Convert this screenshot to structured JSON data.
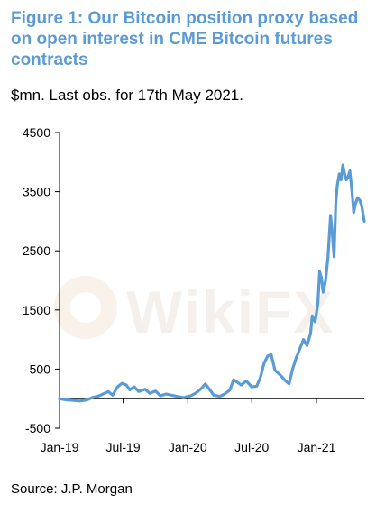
{
  "title": "Figure 1: Our Bitcoin position proxy based on open interest in CME Bitcoin futures contracts",
  "subtitle": "$mn. Last obs. for 17th May 2021.",
  "source": "Source: J.P. Morgan",
  "watermark": "WikiFX",
  "colors": {
    "title": "#5b9bd5",
    "line": "#5b9bd5"
  },
  "chart_data": {
    "type": "line",
    "title": "Figure 1: Our Bitcoin position proxy based on open interest in CME Bitcoin futures contracts",
    "subtitle": "$mn. Last obs. for 17th May 2021.",
    "xlabel": "",
    "ylabel": "",
    "ylim": [
      -500,
      4500
    ],
    "yticks": [
      -500,
      500,
      1500,
      2500,
      3500,
      4500
    ],
    "xlim": [
      "2019-01-01",
      "2021-05-17"
    ],
    "xticks": [
      {
        "date": "2019-01-01",
        "label": "Jan-19"
      },
      {
        "date": "2019-07-01",
        "label": "Jul-19"
      },
      {
        "date": "2020-01-01",
        "label": "Jan-20"
      },
      {
        "date": "2020-07-01",
        "label": "Jul-20"
      },
      {
        "date": "2021-01-01",
        "label": "Jan-21"
      }
    ],
    "grid": false,
    "legend": "none",
    "series": [
      {
        "color": "#5b9bd5",
        "points": [
          [
            "2019-01-01",
            0
          ],
          [
            "2019-01-20",
            -20
          ],
          [
            "2019-02-10",
            -30
          ],
          [
            "2019-03-01",
            -40
          ],
          [
            "2019-03-20",
            -20
          ],
          [
            "2019-04-05",
            20
          ],
          [
            "2019-04-20",
            40
          ],
          [
            "2019-05-05",
            80
          ],
          [
            "2019-05-20",
            120
          ],
          [
            "2019-06-01",
            60
          ],
          [
            "2019-06-15",
            200
          ],
          [
            "2019-06-28",
            260
          ],
          [
            "2019-07-10",
            230
          ],
          [
            "2019-07-20",
            150
          ],
          [
            "2019-08-01",
            200
          ],
          [
            "2019-08-15",
            120
          ],
          [
            "2019-09-01",
            160
          ],
          [
            "2019-09-15",
            90
          ],
          [
            "2019-10-01",
            130
          ],
          [
            "2019-10-15",
            50
          ],
          [
            "2019-11-01",
            80
          ],
          [
            "2019-11-15",
            60
          ],
          [
            "2019-12-01",
            40
          ],
          [
            "2019-12-20",
            20
          ],
          [
            "2020-01-10",
            50
          ],
          [
            "2020-01-25",
            100
          ],
          [
            "2020-02-10",
            180
          ],
          [
            "2020-02-20",
            250
          ],
          [
            "2020-03-01",
            170
          ],
          [
            "2020-03-15",
            60
          ],
          [
            "2020-04-01",
            40
          ],
          [
            "2020-04-15",
            80
          ],
          [
            "2020-04-30",
            150
          ],
          [
            "2020-05-10",
            320
          ],
          [
            "2020-05-20",
            280
          ],
          [
            "2020-06-01",
            230
          ],
          [
            "2020-06-15",
            300
          ],
          [
            "2020-07-01",
            200
          ],
          [
            "2020-07-15",
            210
          ],
          [
            "2020-07-25",
            350
          ],
          [
            "2020-08-05",
            600
          ],
          [
            "2020-08-15",
            720
          ],
          [
            "2020-08-25",
            750
          ],
          [
            "2020-09-05",
            480
          ],
          [
            "2020-09-20",
            400
          ],
          [
            "2020-10-05",
            300
          ],
          [
            "2020-10-15",
            250
          ],
          [
            "2020-10-25",
            500
          ],
          [
            "2020-11-05",
            700
          ],
          [
            "2020-11-15",
            850
          ],
          [
            "2020-11-25",
            1000
          ],
          [
            "2020-12-05",
            900
          ],
          [
            "2020-12-15",
            1100
          ],
          [
            "2020-12-20",
            1400
          ],
          [
            "2020-12-28",
            1300
          ],
          [
            "2021-01-05",
            1600
          ],
          [
            "2021-01-10",
            2150
          ],
          [
            "2021-01-15",
            2050
          ],
          [
            "2021-01-20",
            1800
          ],
          [
            "2021-01-27",
            2000
          ],
          [
            "2021-02-03",
            2400
          ],
          [
            "2021-02-10",
            3100
          ],
          [
            "2021-02-15",
            2800
          ],
          [
            "2021-02-20",
            2400
          ],
          [
            "2021-02-25",
            3300
          ],
          [
            "2021-03-01",
            3600
          ],
          [
            "2021-03-07",
            3800
          ],
          [
            "2021-03-12",
            3700
          ],
          [
            "2021-03-17",
            3950
          ],
          [
            "2021-03-22",
            3800
          ],
          [
            "2021-03-27",
            3700
          ],
          [
            "2021-04-01",
            3750
          ],
          [
            "2021-04-06",
            3850
          ],
          [
            "2021-04-12",
            3500
          ],
          [
            "2021-04-17",
            3150
          ],
          [
            "2021-04-22",
            3300
          ],
          [
            "2021-04-28",
            3400
          ],
          [
            "2021-05-05",
            3350
          ],
          [
            "2021-05-10",
            3250
          ],
          [
            "2021-05-17",
            3000
          ]
        ]
      }
    ]
  }
}
